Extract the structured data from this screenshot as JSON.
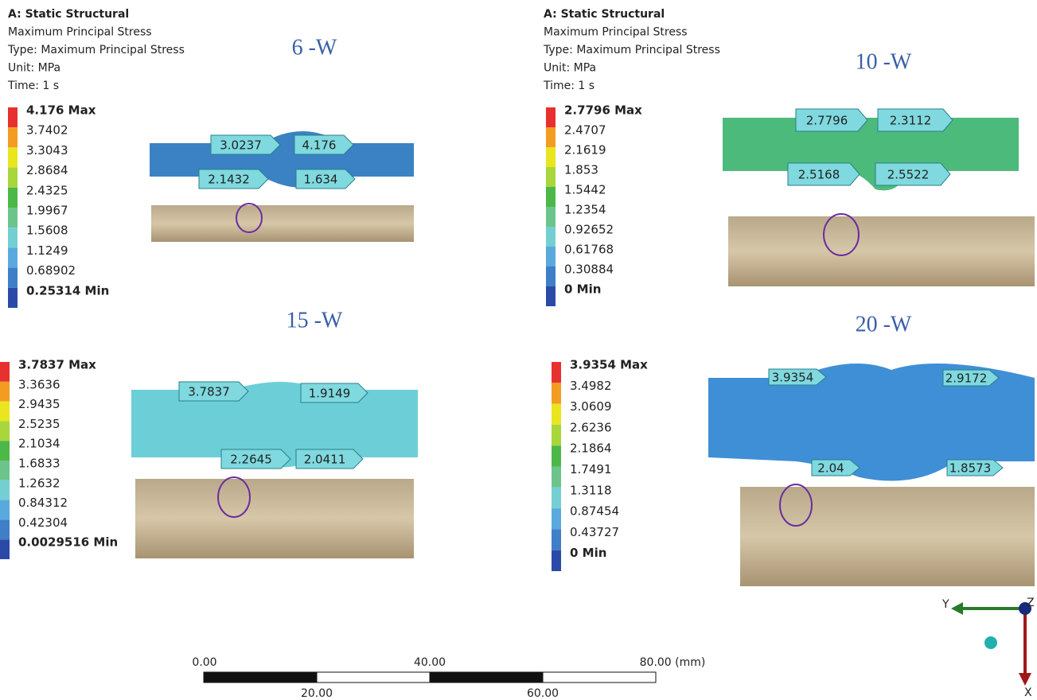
{
  "panels": [
    {
      "header": [
        "A: Static Structural",
        "Maximum Principal Stress",
        "Type: Maximum Principal Stress",
        "Unit: MPa",
        "Time: 1 s"
      ],
      "label": "6 -W",
      "legend": [
        "4.176 Max",
        "3.7402",
        "3.3043",
        "2.8684",
        "2.4325",
        "1.9967",
        "1.5608",
        "1.1249",
        "0.68902",
        "0.25314 Min"
      ],
      "probes": [
        "3.0237",
        "4.176",
        "2.1432",
        "1.634"
      ]
    },
    {
      "header": [
        "A: Static Structural",
        "Maximum Principal Stress",
        "Type: Maximum Principal Stress",
        "Unit: MPa",
        "Time: 1 s"
      ],
      "label": "10 -W",
      "legend": [
        "2.7796 Max",
        "2.4707",
        "2.1619",
        "1.853",
        "1.5442",
        "1.2354",
        "0.92652",
        "0.61768",
        "0.30884",
        "0 Min"
      ],
      "probes": [
        "2.7796",
        "2.3112",
        "2.5168",
        "2.5522"
      ]
    },
    {
      "label": "15 -W",
      "legend": [
        "3.7837 Max",
        "3.3636",
        "2.9435",
        "2.5235",
        "2.1034",
        "1.6833",
        "1.2632",
        "0.84312",
        "0.42304",
        "0.0029516 Min"
      ],
      "probes": [
        "3.7837",
        "1.9149",
        "2.2645",
        "2.0411"
      ]
    },
    {
      "label": "20 -W",
      "legend": [
        "3.9354 Max",
        "3.4982",
        "3.0609",
        "2.6236",
        "2.1864",
        "1.7491",
        "1.3118",
        "0.87454",
        "0.43727",
        "0 Min"
      ],
      "probes": [
        "3.9354",
        "2.9172",
        "2.04",
        "1.8573"
      ]
    }
  ],
  "scale_bar": {
    "top": [
      "0.00",
      "40.00",
      "80.00 (mm)"
    ],
    "bottom": [
      "20.00",
      "60.00"
    ]
  },
  "triad": {
    "y": "Y",
    "z": "Z",
    "x": "X"
  }
}
